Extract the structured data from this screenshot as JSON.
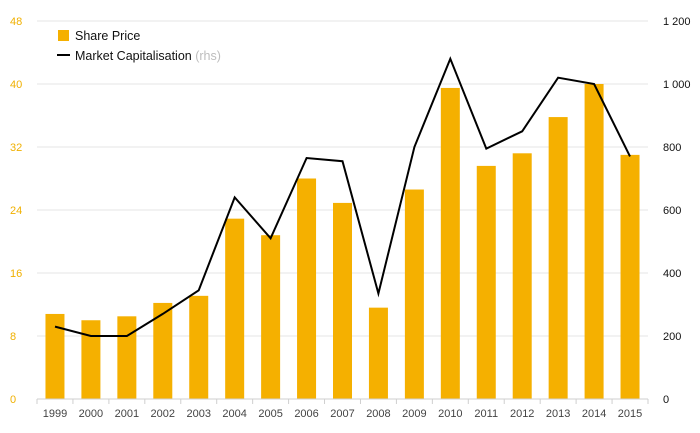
{
  "chart_data": {
    "type": "bar",
    "title": "",
    "xlabel": "",
    "ylabel": "",
    "categories": [
      "1999",
      "2000",
      "2001",
      "2002",
      "2003",
      "2004",
      "2005",
      "2006",
      "2007",
      "2008",
      "2009",
      "2010",
      "2011",
      "2012",
      "2013",
      "2014",
      "2015"
    ],
    "series": [
      {
        "name": "Share Price",
        "type": "bar",
        "axis": "left",
        "color": "#f5b000",
        "values": [
          10.8,
          10.0,
          10.5,
          12.2,
          13.1,
          22.9,
          20.8,
          28.0,
          24.9,
          11.6,
          26.6,
          39.5,
          29.6,
          31.2,
          35.8,
          40.0,
          31.0
        ]
      },
      {
        "name": "Market Capitalisation",
        "type": "line",
        "axis": "right",
        "color": "#000000",
        "values": [
          230,
          200,
          200,
          270,
          345,
          640,
          510,
          765,
          755,
          335,
          800,
          1080,
          795,
          850,
          1020,
          1000,
          770
        ]
      }
    ],
    "ylim_left": [
      0,
      48
    ],
    "yticks_left": [
      0,
      8,
      16,
      24,
      32,
      40,
      48
    ],
    "ylim_right": [
      0,
      1200
    ],
    "yticks_right": [
      "0",
      "200",
      "400",
      "600",
      "800",
      "1 000",
      "1 200"
    ],
    "legend": {
      "position": "top-left",
      "items": [
        {
          "label": "Share Price",
          "suffix": "",
          "marker": "square"
        },
        {
          "label": "Market Capitalisation",
          "suffix": "(rhs)",
          "marker": "line"
        }
      ]
    },
    "grid": true,
    "grid_color": "#e6e6e6",
    "left_axis_color": "#f0b000",
    "right_axis_color": "#111111"
  }
}
